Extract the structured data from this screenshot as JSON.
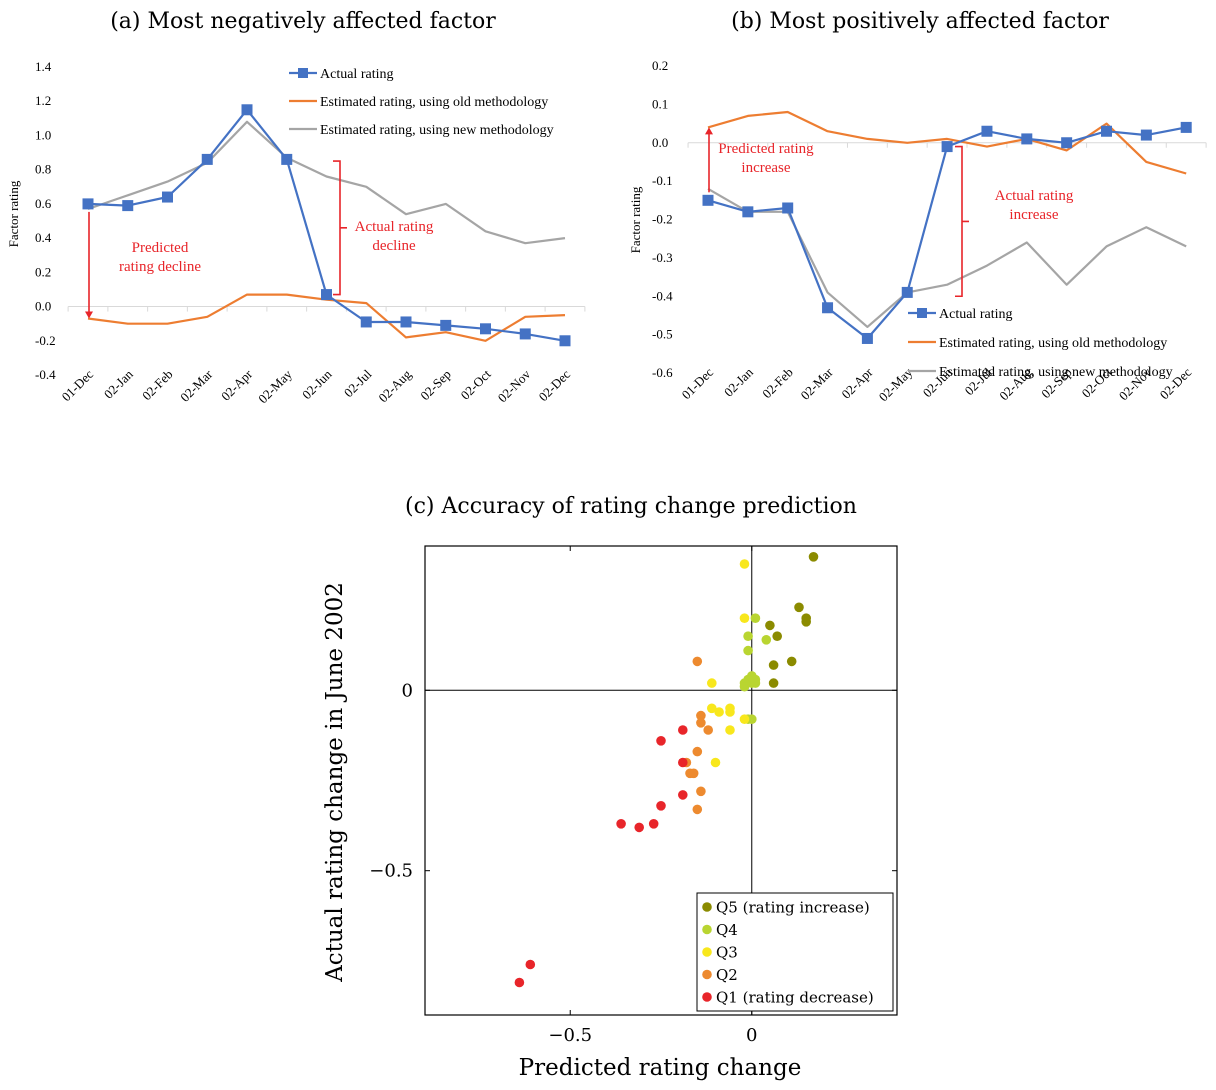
{
  "chart_data": [
    {
      "type": "line",
      "title": "(a) Most negatively affected factor",
      "ylabel": "Factor rating",
      "ylim": [
        -0.4,
        1.4
      ],
      "yticks": [
        1.4,
        1.2,
        1.0,
        0.8,
        0.6,
        0.4,
        0.2,
        0.0,
        -0.2,
        -0.4
      ],
      "ytick_labels": [
        "1.4",
        "1.2",
        "1.0",
        "0.8",
        "0.6",
        "0.4",
        "0.2",
        "0.0",
        "-0.2",
        "-0.4"
      ],
      "categories": [
        "01-Dec",
        "02-Jan",
        "02-Feb",
        "02-Mar",
        "02-Apr",
        "02-May",
        "02-Jun",
        "02-Jul",
        "02-Aug",
        "02-Sep",
        "02-Oct",
        "02-Nov",
        "02-Dec"
      ],
      "series": [
        {
          "name": "Actual rating",
          "color": "#4472C4",
          "marker": "square",
          "values": [
            0.6,
            0.59,
            0.64,
            0.86,
            1.15,
            0.86,
            0.07,
            -0.09,
            -0.09,
            -0.11,
            -0.13,
            -0.16,
            -0.2
          ]
        },
        {
          "name": "Estimated rating, using old methodology",
          "color": "#ED7D31",
          "values": [
            -0.07,
            -0.1,
            -0.1,
            -0.06,
            0.07,
            0.07,
            0.04,
            0.02,
            -0.18,
            -0.15,
            -0.2,
            -0.06,
            -0.05
          ]
        },
        {
          "name": "Estimated rating, using new methodology",
          "color": "#A5A5A5",
          "values": [
            0.57,
            0.65,
            0.73,
            0.84,
            1.08,
            0.87,
            0.76,
            0.7,
            0.54,
            0.6,
            0.44,
            0.37,
            0.4
          ]
        }
      ],
      "annotations": {
        "predicted_lines": [
          "Predicted",
          "rating decline"
        ],
        "actual_lines": [
          "Actual rating",
          "decline"
        ]
      },
      "legend": "top-right"
    },
    {
      "type": "line",
      "title": "(b) Most positively affected factor",
      "ylabel": "Factor rating",
      "ylim": [
        -0.6,
        0.2
      ],
      "yticks": [
        0.2,
        0.1,
        0.0,
        -0.1,
        -0.2,
        -0.3,
        -0.4,
        -0.5,
        -0.6
      ],
      "ytick_labels": [
        "0.2",
        "0.1",
        "0.0",
        "-0.1",
        "-0.2",
        "-0.3",
        "-0.4",
        "-0.5",
        "-0.6"
      ],
      "categories": [
        "01-Dec",
        "02-Jan",
        "02-Feb",
        "02-Mar",
        "02-Apr",
        "02-May",
        "02-Jun",
        "02-Jul",
        "02-Aug",
        "02-Sep",
        "02-Oct",
        "02-Nov",
        "02-Dec"
      ],
      "series": [
        {
          "name": "Actual rating",
          "color": "#4472C4",
          "marker": "square",
          "values": [
            -0.15,
            -0.18,
            -0.17,
            -0.43,
            -0.51,
            -0.39,
            -0.01,
            0.03,
            0.01,
            0.0,
            0.03,
            0.02,
            0.04
          ]
        },
        {
          "name": "Estimated rating, using old methodology",
          "color": "#ED7D31",
          "values": [
            0.04,
            0.07,
            0.08,
            0.03,
            0.01,
            0.0,
            0.01,
            -0.01,
            0.01,
            -0.02,
            0.05,
            -0.05,
            -0.08
          ]
        },
        {
          "name": "Estimated rating, using new methodology",
          "color": "#A5A5A5",
          "values": [
            -0.12,
            -0.18,
            -0.18,
            -0.39,
            -0.48,
            -0.39,
            -0.37,
            -0.32,
            -0.26,
            -0.37,
            -0.27,
            -0.22,
            -0.27
          ]
        }
      ],
      "annotations": {
        "predicted_lines": [
          "Predicted rating",
          "increase"
        ],
        "actual_lines": [
          "Actual rating",
          "increase"
        ]
      },
      "legend": "bottom-right"
    },
    {
      "type": "scatter",
      "title": "(c) Accuracy of rating change prediction",
      "xlabel": "Predicted rating change",
      "ylabel": "Actual rating change in June 2002",
      "xlim": [
        -0.9,
        0.4
      ],
      "ylim": [
        -0.9,
        0.4
      ],
      "xtick_labels": [
        "−0.5",
        "0"
      ],
      "ytick_labels": [
        "0",
        "−0.5"
      ],
      "legend": "bottom-right",
      "series": [
        {
          "name": "Q5 (rating increase)",
          "color": "#8B8B00",
          "points": [
            [
              0.17,
              0.37
            ],
            [
              0.13,
              0.23
            ],
            [
              0.15,
              0.2
            ],
            [
              0.15,
              0.19
            ],
            [
              0.05,
              0.18
            ],
            [
              0.07,
              0.15
            ],
            [
              0.11,
              0.08
            ],
            [
              0.06,
              0.07
            ],
            [
              0.06,
              0.02
            ]
          ]
        },
        {
          "name": "Q4",
          "color": "#B9D531",
          "points": [
            [
              0.01,
              0.2
            ],
            [
              -0.01,
              0.15
            ],
            [
              0.04,
              0.14
            ],
            [
              -0.01,
              0.11
            ],
            [
              0.0,
              0.04
            ],
            [
              0.01,
              0.03
            ],
            [
              -0.01,
              0.03
            ],
            [
              0.0,
              0.02
            ],
            [
              -0.02,
              0.02
            ],
            [
              0.01,
              0.02
            ],
            [
              -0.02,
              0.01
            ],
            [
              0.0,
              -0.08
            ],
            [
              -0.01,
              -0.08
            ]
          ]
        },
        {
          "name": "Q3",
          "color": "#F8E71C",
          "points": [
            [
              -0.02,
              0.35
            ],
            [
              -0.02,
              0.2
            ],
            [
              -0.11,
              0.02
            ],
            [
              -0.11,
              -0.05
            ],
            [
              -0.09,
              -0.06
            ],
            [
              -0.06,
              -0.05
            ],
            [
              -0.06,
              -0.06
            ],
            [
              -0.06,
              -0.11
            ],
            [
              -0.1,
              -0.2
            ],
            [
              -0.02,
              -0.08
            ]
          ]
        },
        {
          "name": "Q2",
          "color": "#ED8A2F",
          "points": [
            [
              -0.15,
              0.08
            ],
            [
              -0.14,
              -0.07
            ],
            [
              -0.14,
              -0.09
            ],
            [
              -0.12,
              -0.11
            ],
            [
              -0.15,
              -0.17
            ],
            [
              -0.18,
              -0.2
            ],
            [
              -0.17,
              -0.23
            ],
            [
              -0.16,
              -0.23
            ],
            [
              -0.14,
              -0.28
            ],
            [
              -0.15,
              -0.33
            ]
          ]
        },
        {
          "name": "Q1 (rating decrease)",
          "color": "#E8252A",
          "points": [
            [
              -0.25,
              -0.14
            ],
            [
              -0.19,
              -0.11
            ],
            [
              -0.19,
              -0.2
            ],
            [
              -0.19,
              -0.29
            ],
            [
              -0.25,
              -0.32
            ],
            [
              -0.36,
              -0.37
            ],
            [
              -0.31,
              -0.38
            ],
            [
              -0.27,
              -0.37
            ],
            [
              -0.61,
              -0.76
            ],
            [
              -0.64,
              -0.81
            ]
          ]
        }
      ]
    }
  ]
}
